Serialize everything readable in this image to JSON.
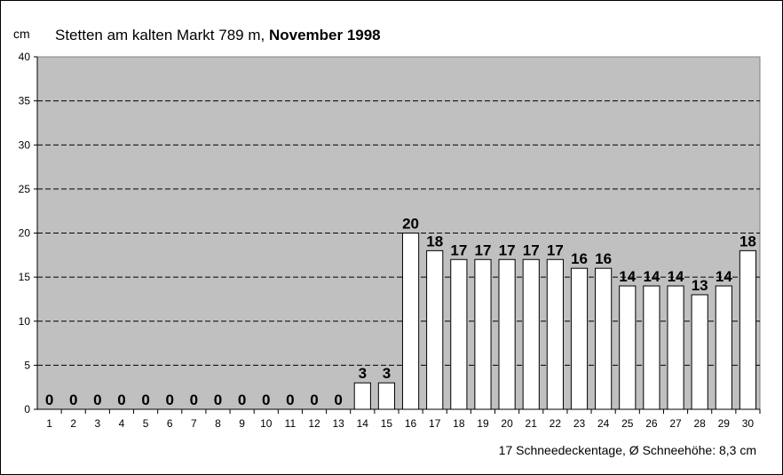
{
  "chart_data": {
    "type": "bar",
    "title_prefix": "Stetten am kalten Markt 789 m, ",
    "title_bold": "November 1998",
    "ylabel": "cm",
    "ylim": [
      0,
      40
    ],
    "yticks": [
      0,
      5,
      10,
      15,
      20,
      25,
      30,
      35,
      40
    ],
    "grid": true,
    "plot_background": "#c0c0c0",
    "bar_color": "#ffffff",
    "categories": [
      "1",
      "2",
      "3",
      "4",
      "5",
      "6",
      "7",
      "8",
      "9",
      "10",
      "11",
      "12",
      "13",
      "14",
      "15",
      "16",
      "17",
      "18",
      "19",
      "20",
      "21",
      "22",
      "23",
      "24",
      "25",
      "26",
      "27",
      "28",
      "29",
      "30"
    ],
    "values": [
      0,
      0,
      0,
      0,
      0,
      0,
      0,
      0,
      0,
      0,
      0,
      0,
      0,
      3,
      3,
      20,
      18,
      17,
      17,
      17,
      17,
      17,
      16,
      16,
      14,
      14,
      14,
      13,
      14,
      18
    ],
    "footer_days": "17 Schneedeckentage,",
    "footer_avg": "Ø Schneehöhe:  8,3 cm"
  }
}
